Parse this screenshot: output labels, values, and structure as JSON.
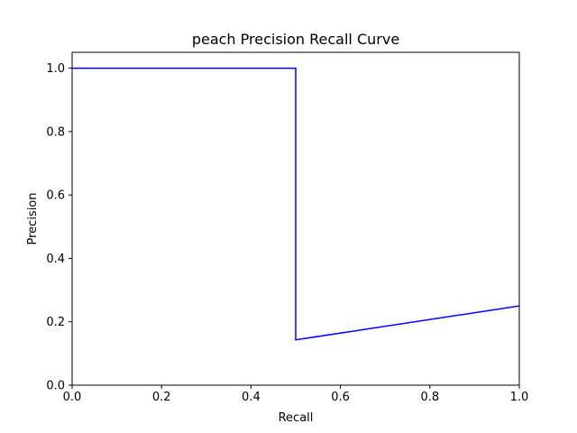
{
  "chart_data": {
    "type": "line",
    "title": "peach Precision Recall Curve",
    "xlabel": "Recall",
    "ylabel": "Precision",
    "xlim": [
      0.0,
      1.0
    ],
    "ylim": [
      0.0,
      1.05
    ],
    "xticks": [
      0.0,
      0.2,
      0.4,
      0.6,
      0.8,
      1.0
    ],
    "xtick_labels": [
      "0.0",
      "0.2",
      "0.4",
      "0.6",
      "0.8",
      "1.0"
    ],
    "yticks": [
      0.0,
      0.2,
      0.4,
      0.6,
      0.8,
      1.0
    ],
    "ytick_labels": [
      "0.0",
      "0.2",
      "0.4",
      "0.6",
      "0.8",
      "1.0"
    ],
    "grid": false,
    "series": [
      {
        "color": "#0000ff",
        "x": [
          0.0,
          0.5,
          0.5,
          1.0
        ],
        "y": [
          1.0,
          1.0,
          0.143,
          0.25
        ]
      }
    ]
  }
}
